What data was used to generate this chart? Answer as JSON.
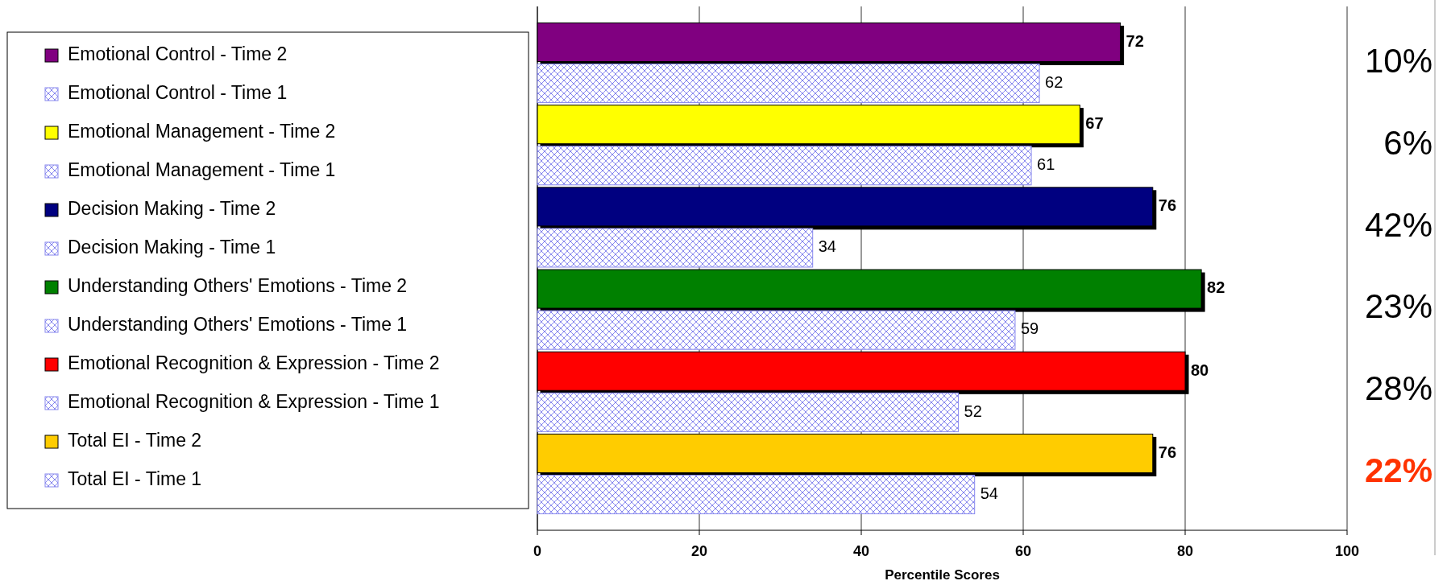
{
  "chart_data": {
    "type": "bar",
    "orientation": "horizontal",
    "xlabel": "Percentile Scores",
    "categories": [
      null,
      null,
      null,
      null,
      null,
      null,
      null,
      null,
      null,
      null,
      null,
      null
    ],
    "series": [
      {
        "name": "Emotional Control - Time 2",
        "color": "#800080",
        "values": [
          72,
          null,
          null,
          null,
          null,
          null,
          null,
          null,
          null,
          null,
          null,
          null
        ]
      },
      {
        "name": "Emotional Control - Time 1",
        "color": "#8888ee",
        "values": [
          null,
          62,
          null,
          null,
          null,
          null,
          null,
          null,
          null,
          null,
          null,
          null
        ]
      },
      {
        "name": "Emotional Management - Time 2",
        "color": "#ffff00",
        "values": [
          null,
          null,
          67,
          null,
          null,
          null,
          null,
          null,
          null,
          null,
          null,
          null
        ]
      },
      {
        "name": "Emotional Management - Time 1",
        "color": "#8888ee",
        "values": [
          null,
          null,
          null,
          61,
          null,
          null,
          null,
          null,
          null,
          null,
          null,
          null
        ]
      },
      {
        "name": "Decision Making - Time 2",
        "color": "#000080",
        "values": [
          null,
          null,
          null,
          null,
          76,
          null,
          null,
          null,
          null,
          null,
          null,
          null
        ]
      },
      {
        "name": "Decision Making - Time 1",
        "color": "#8888ee",
        "values": [
          null,
          null,
          null,
          null,
          null,
          34,
          null,
          null,
          null,
          null,
          null,
          null
        ]
      },
      {
        "name": "Understanding Others' Emotions - Time 2",
        "color": "#008000",
        "values": [
          null,
          null,
          null,
          null,
          null,
          null,
          82,
          null,
          null,
          null,
          null,
          null
        ]
      },
      {
        "name": "Understanding Others' Emotions - Time 1",
        "color": "#8888ee",
        "values": [
          null,
          null,
          null,
          null,
          null,
          null,
          null,
          59,
          null,
          null,
          null,
          null
        ]
      },
      {
        "name": "Emotional Recognition & Expression - Time 2",
        "color": "#ff0000",
        "values": [
          null,
          null,
          null,
          null,
          null,
          null,
          null,
          null,
          80,
          null,
          null,
          null
        ]
      },
      {
        "name": "Emotional Recognition & Expression - Time 1",
        "color": "#8888ee",
        "values": [
          null,
          null,
          null,
          null,
          null,
          null,
          null,
          null,
          null,
          52,
          null,
          null
        ]
      },
      {
        "name": "Total EI - Time 2",
        "color": "#ffcc00",
        "values": [
          null,
          null,
          null,
          null,
          null,
          null,
          null,
          null,
          null,
          null,
          76,
          null
        ]
      },
      {
        "name": "Total EI - Time 1",
        "color": "#8888ee",
        "values": [
          null,
          null,
          null,
          null,
          null,
          null,
          null,
          null,
          null,
          null,
          null,
          54
        ]
      }
    ],
    "xlim": [
      0,
      100
    ],
    "xticks": [
      0,
      20,
      40,
      60,
      80,
      100
    ],
    "grid": "x",
    "legend": "left",
    "data_labels": true,
    "annotations": [
      "10%",
      "6%",
      "42%",
      "23%",
      "28%",
      "22%"
    ]
  }
}
